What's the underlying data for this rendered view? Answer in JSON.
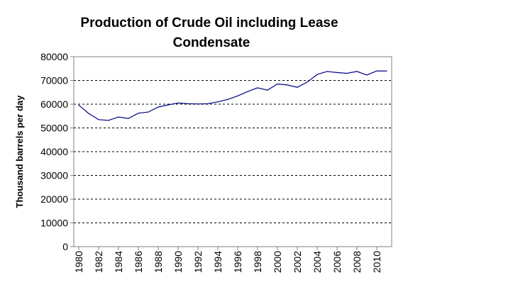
{
  "chart_data": {
    "type": "line",
    "title_line1": "Production of Crude Oil including Lease",
    "title_line2": "Condensate",
    "xlabel": "",
    "ylabel": "Thousand barrels per day",
    "ylim": [
      0,
      80000
    ],
    "y_ticks": [
      "0",
      "10000",
      "20000",
      "30000",
      "40000",
      "50000",
      "60000",
      "70000",
      "80000"
    ],
    "x_tick_labels": [
      "1980",
      "1982",
      "1984",
      "1986",
      "1988",
      "1990",
      "1992",
      "1994",
      "1996",
      "1998",
      "2000",
      "2002",
      "2004",
      "2006",
      "2008",
      "2010"
    ],
    "grid": "horizontal dashed",
    "legend": "none",
    "line_color": "#000080",
    "series": [
      {
        "x": [
          1980,
          1981,
          1982,
          1983,
          1984,
          1985,
          1986,
          1987,
          1988,
          1989,
          1990,
          1991,
          1992,
          1993,
          1994,
          1995,
          1996,
          1997,
          1998,
          1999,
          2000,
          2001,
          2002,
          2003,
          2004,
          2005,
          2006,
          2007,
          2008,
          2009,
          2010,
          2011
        ],
        "values": [
          59600,
          56100,
          53500,
          53200,
          54600,
          54000,
          56200,
          56700,
          58800,
          59700,
          60500,
          60200,
          60100,
          60200,
          61000,
          62000,
          63500,
          65300,
          66900,
          65900,
          68500,
          68100,
          67100,
          69300,
          72500,
          73800,
          73300,
          73000,
          73800,
          72300,
          74000,
          74000
        ]
      }
    ]
  }
}
